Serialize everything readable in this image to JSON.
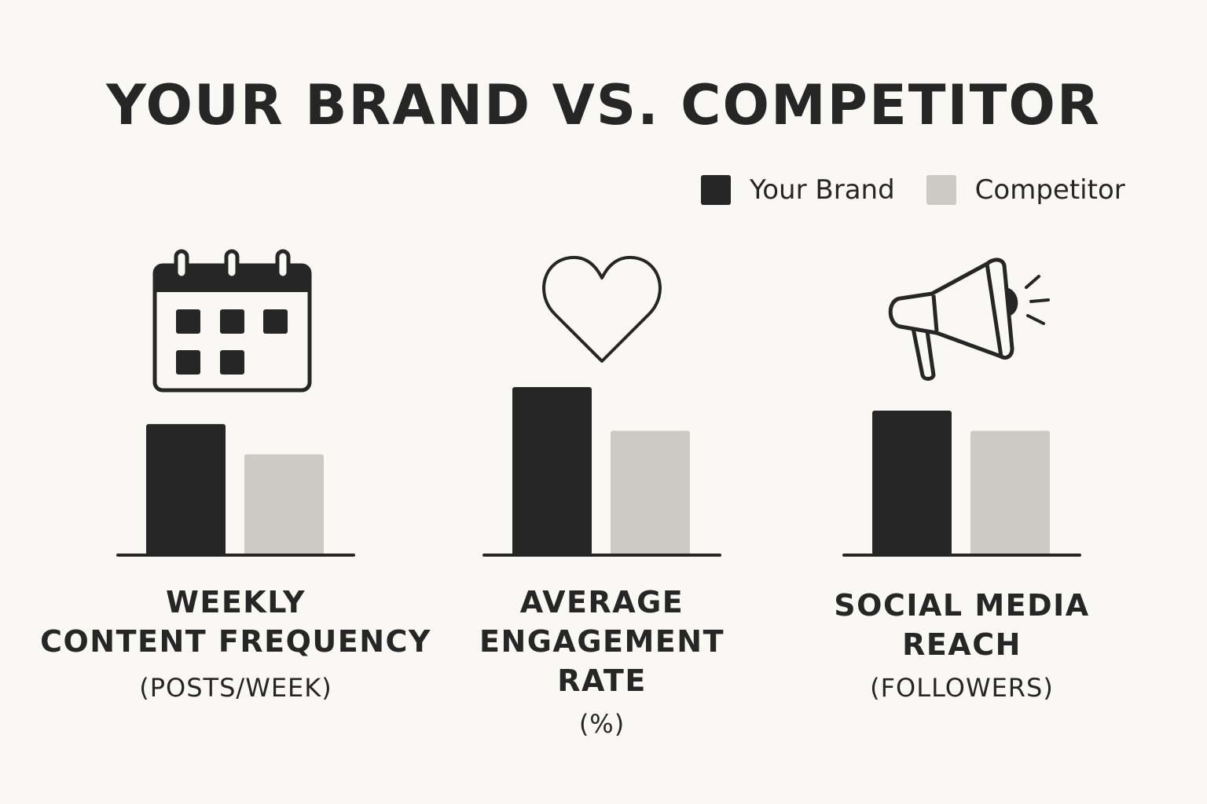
{
  "header": {
    "title": "YOUR BRAND VS. COMPETITOR"
  },
  "legend": {
    "placement": "top-right",
    "items": [
      {
        "label": "Your Brand",
        "color": "#262626"
      },
      {
        "label": "Competitor",
        "color": "#cbcac5"
      }
    ]
  },
  "colors": {
    "background": "#f9f8f4",
    "ink": "#262626",
    "your_brand": "#262626",
    "competitor": "#cbcac5"
  },
  "panels": [
    {
      "icon": "calendar-icon",
      "label_lines": [
        "WEEKLY",
        "CONTENT FREQUENCY"
      ],
      "unit": "(POSTS/WEEK)"
    },
    {
      "icon": "heart-icon",
      "label_lines": [
        "AVERAGE",
        "ENGAGEMENT",
        "RATE"
      ],
      "unit": "(%)"
    },
    {
      "icon": "megaphone-icon",
      "label_lines": [
        "SOCIAL MEDIA",
        "REACH"
      ],
      "unit": "(FOLLOWERS)"
    }
  ],
  "chart_data": [
    {
      "type": "bar",
      "title": "",
      "categories": [
        "WEEKLY CONTENT FREQUENCY"
      ],
      "xlabel": "",
      "ylabel": "",
      "ylim": [
        0,
        100
      ],
      "grid": false,
      "series": [
        {
          "name": "Your Brand",
          "values": [
            78
          ]
        },
        {
          "name": "Competitor",
          "values": [
            60
          ]
        }
      ]
    },
    {
      "type": "bar",
      "title": "",
      "categories": [
        "AVERAGE ENGAGEMENT RATE"
      ],
      "xlabel": "",
      "ylabel": "",
      "ylim": [
        0,
        100
      ],
      "grid": false,
      "series": [
        {
          "name": "Your Brand",
          "values": [
            100
          ]
        },
        {
          "name": "Competitor",
          "values": [
            74
          ]
        }
      ]
    },
    {
      "type": "bar",
      "title": "",
      "categories": [
        "SOCIAL MEDIA REACH"
      ],
      "xlabel": "",
      "ylabel": "",
      "ylim": [
        0,
        100
      ],
      "grid": false,
      "series": [
        {
          "name": "Your Brand",
          "values": [
            86
          ]
        },
        {
          "name": "Competitor",
          "values": [
            74
          ]
        }
      ]
    }
  ]
}
